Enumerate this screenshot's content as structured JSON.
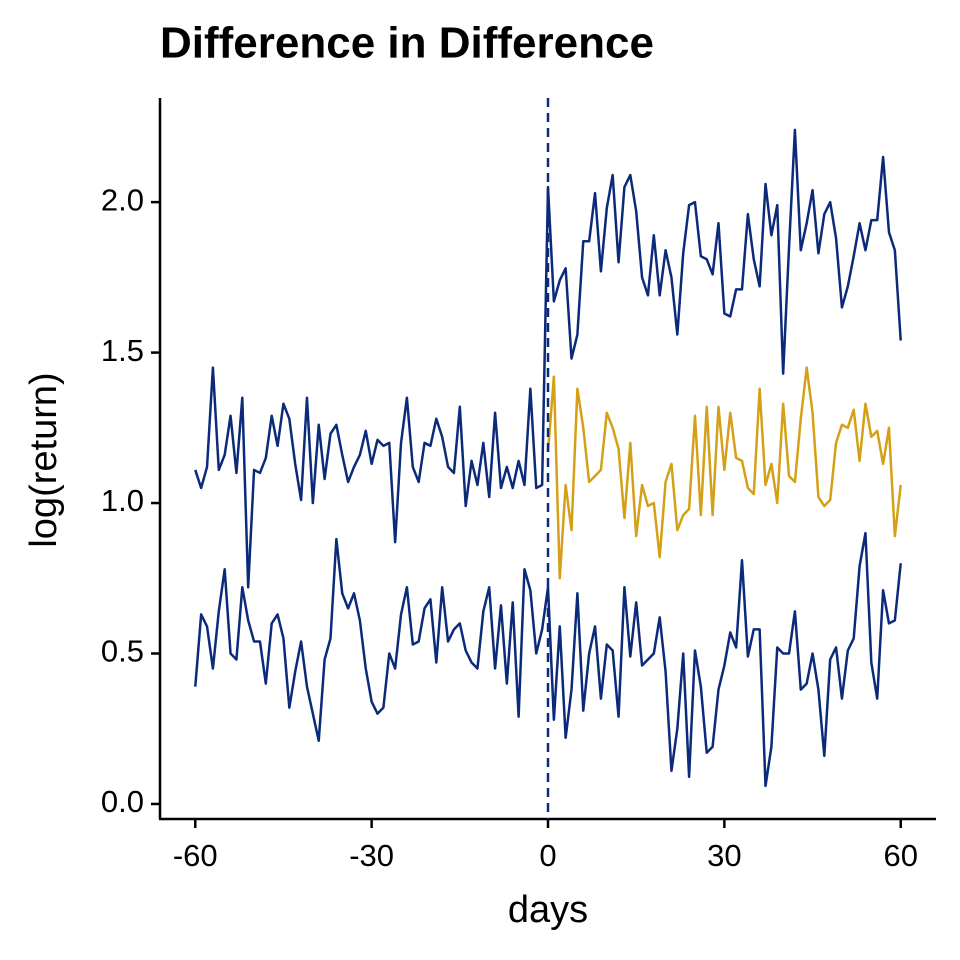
{
  "chart_data": {
    "type": "line",
    "title": "Difference in Difference",
    "x_label": "days",
    "y_label": "log(return)",
    "x": [
      -60,
      -59,
      -58,
      -57,
      -56,
      -55,
      -54,
      -53,
      -52,
      -51,
      -50,
      -49,
      -48,
      -47,
      -46,
      -45,
      -44,
      -43,
      -42,
      -41,
      -40,
      -39,
      -38,
      -37,
      -36,
      -35,
      -34,
      -33,
      -32,
      -31,
      -30,
      -29,
      -28,
      -27,
      -26,
      -25,
      -24,
      -23,
      -22,
      -21,
      -20,
      -19,
      -18,
      -17,
      -16,
      -15,
      -14,
      -13,
      -12,
      -11,
      -10,
      -9,
      -8,
      -7,
      -6,
      -5,
      -4,
      -3,
      -2,
      -1,
      0,
      1,
      2,
      3,
      4,
      5,
      6,
      7,
      8,
      9,
      10,
      11,
      12,
      13,
      14,
      15,
      16,
      17,
      18,
      19,
      20,
      21,
      22,
      23,
      24,
      25,
      26,
      27,
      28,
      29,
      30,
      31,
      32,
      33,
      34,
      35,
      36,
      37,
      38,
      39,
      40,
      41,
      42,
      43,
      44,
      45,
      46,
      47,
      48,
      49,
      50,
      51,
      52,
      53,
      54,
      55,
      56,
      57,
      58,
      59,
      60
    ],
    "series": [
      {
        "color": "#0b2a7a",
        "values": [
          1.11,
          1.05,
          1.12,
          1.45,
          1.11,
          1.16,
          1.29,
          1.1,
          1.35,
          0.72,
          1.11,
          1.1,
          1.15,
          1.29,
          1.19,
          1.33,
          1.28,
          1.13,
          1.01,
          1.35,
          1.0,
          1.26,
          1.08,
          1.23,
          1.26,
          1.16,
          1.07,
          1.12,
          1.16,
          1.24,
          1.13,
          1.21,
          1.19,
          1.2,
          0.87,
          1.2,
          1.35,
          1.12,
          1.07,
          1.2,
          1.19,
          1.28,
          1.22,
          1.12,
          1.1,
          1.32,
          0.99,
          1.14,
          1.06,
          1.2,
          1.02,
          1.3,
          1.05,
          1.12,
          1.05,
          1.14,
          1.06,
          1.38,
          1.05,
          1.06,
          2.05,
          1.67,
          1.74,
          1.78,
          1.48,
          1.56,
          1.87,
          1.87,
          2.03,
          1.77,
          1.98,
          2.09,
          1.8,
          2.05,
          2.09,
          1.97,
          1.75,
          1.69,
          1.89,
          1.69,
          1.84,
          1.75,
          1.56,
          1.83,
          1.99,
          2.0,
          1.82,
          1.81,
          1.76,
          1.93,
          1.63,
          1.62,
          1.71,
          1.71,
          1.96,
          1.81,
          1.72,
          2.06,
          1.89,
          1.99,
          1.43,
          1.85,
          2.24,
          1.84,
          1.93,
          2.04,
          1.83,
          1.96,
          2.0,
          1.88,
          1.65,
          1.72,
          1.82,
          1.93,
          1.84,
          1.94,
          1.94,
          2.15,
          1.9,
          1.84,
          1.54
        ]
      },
      {
        "color": "#0b2a7a",
        "values": [
          0.39,
          0.63,
          0.59,
          0.45,
          0.64,
          0.78,
          0.5,
          0.48,
          0.72,
          0.61,
          0.54,
          0.54,
          0.4,
          0.6,
          0.63,
          0.55,
          0.32,
          0.44,
          0.54,
          0.39,
          0.3,
          0.21,
          0.48,
          0.55,
          0.88,
          0.7,
          0.65,
          0.7,
          0.61,
          0.45,
          0.34,
          0.3,
          0.32,
          0.5,
          0.45,
          0.63,
          0.72,
          0.53,
          0.54,
          0.65,
          0.68,
          0.47,
          0.72,
          0.54,
          0.58,
          0.6,
          0.51,
          0.47,
          0.45,
          0.64,
          0.72,
          0.45,
          0.66,
          0.4,
          0.67,
          0.29,
          0.78,
          0.71,
          0.5,
          0.58,
          0.72,
          0.28,
          0.59,
          0.22,
          0.38,
          0.7,
          0.31,
          0.5,
          0.59,
          0.35,
          0.53,
          0.51,
          0.29,
          0.72,
          0.49,
          0.67,
          0.46,
          0.48,
          0.5,
          0.62,
          0.44,
          0.11,
          0.25,
          0.5,
          0.09,
          0.51,
          0.39,
          0.17,
          0.19,
          0.38,
          0.46,
          0.57,
          0.52,
          0.81,
          0.49,
          0.58,
          0.58,
          0.06,
          0.19,
          0.52,
          0.5,
          0.5,
          0.64,
          0.38,
          0.4,
          0.5,
          0.38,
          0.16,
          0.48,
          0.52,
          0.35,
          0.51,
          0.55,
          0.79,
          0.9,
          0.47,
          0.35,
          0.71,
          0.6,
          0.61,
          0.8
        ]
      },
      {
        "color": "#d4a017",
        "values": [
          null,
          null,
          null,
          null,
          null,
          null,
          null,
          null,
          null,
          null,
          null,
          null,
          null,
          null,
          null,
          null,
          null,
          null,
          null,
          null,
          null,
          null,
          null,
          null,
          null,
          null,
          null,
          null,
          null,
          null,
          null,
          null,
          null,
          null,
          null,
          null,
          null,
          null,
          null,
          null,
          null,
          null,
          null,
          null,
          null,
          null,
          null,
          null,
          null,
          null,
          null,
          null,
          null,
          null,
          null,
          null,
          null,
          null,
          null,
          null,
          1.17,
          1.42,
          0.75,
          1.06,
          0.91,
          1.38,
          1.25,
          1.07,
          1.09,
          1.11,
          1.3,
          1.25,
          1.18,
          0.95,
          1.2,
          0.89,
          1.06,
          0.99,
          1.0,
          0.82,
          1.07,
          1.13,
          0.91,
          0.96,
          0.98,
          1.29,
          0.96,
          1.32,
          0.96,
          1.32,
          1.11,
          1.3,
          1.15,
          1.14,
          1.05,
          1.03,
          1.38,
          1.06,
          1.13,
          1.0,
          1.33,
          1.09,
          1.07,
          1.28,
          1.45,
          1.3,
          1.02,
          0.99,
          1.01,
          1.2,
          1.26,
          1.25,
          1.31,
          1.14,
          1.33,
          1.22,
          1.24,
          1.13,
          1.25,
          0.89,
          1.06
        ]
      }
    ],
    "vline": 0,
    "vline_color": "#0b2a7a",
    "xlim": [
      -66,
      66
    ],
    "xticks": [
      -60,
      -30,
      0,
      30,
      60
    ],
    "ylim": [
      -0.05,
      2.346
    ],
    "yticks": [
      {
        "value": 0,
        "label": "0.0"
      },
      0.5,
      {
        "value": 1,
        "label": "1.0"
      },
      1.5,
      {
        "value": 2,
        "label": "2.0"
      }
    ]
  }
}
